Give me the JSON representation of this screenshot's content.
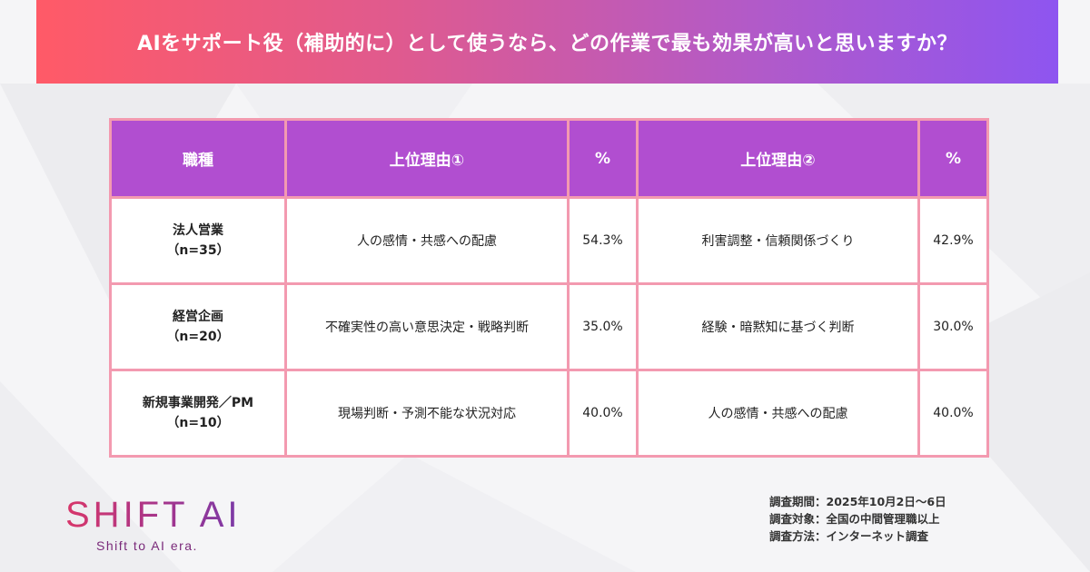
{
  "header": {
    "title": "AIをサポート役（補助的に）として使うなら、どの作業で最も効果が高いと思いますか？"
  },
  "chart_data": {
    "type": "table",
    "columns": [
      "職種",
      "上位理由①",
      "%",
      "上位理由②",
      "%"
    ],
    "rows": [
      {
        "role": "法人営業",
        "n": "（n=35）",
        "reason1": "人の感情・共感への配慮",
        "pct1": "54.3%",
        "reason2": "利害調整・信頼関係づくり",
        "pct2": "42.9%"
      },
      {
        "role": "経営企画",
        "n": "（n=20）",
        "reason1": "不確実性の高い意思決定・戦略判断",
        "pct1": "35.0%",
        "reason2": "経験・暗黙知に基づく判断",
        "pct2": "30.0%"
      },
      {
        "role": "新規事業開発／PM",
        "n": "（n=10）",
        "reason1": "現場判断・予測不能な状況対応",
        "pct1": "40.0%",
        "reason2": "人の感情・共感への配慮",
        "pct2": "40.0%"
      }
    ]
  },
  "logo": {
    "main": "SHIFT AI",
    "tagline": "Shift to AI era."
  },
  "notes": {
    "period": "調査期間：2025年10月2日〜6日",
    "target": "調査対象：全国の中間管理職以上",
    "method": "調査方法：インターネット調査"
  },
  "colors": {
    "header_start": "#ff5a67",
    "header_end": "#8e55f0",
    "table_header": "#b14ed0",
    "table_border": "#f39ab0"
  }
}
